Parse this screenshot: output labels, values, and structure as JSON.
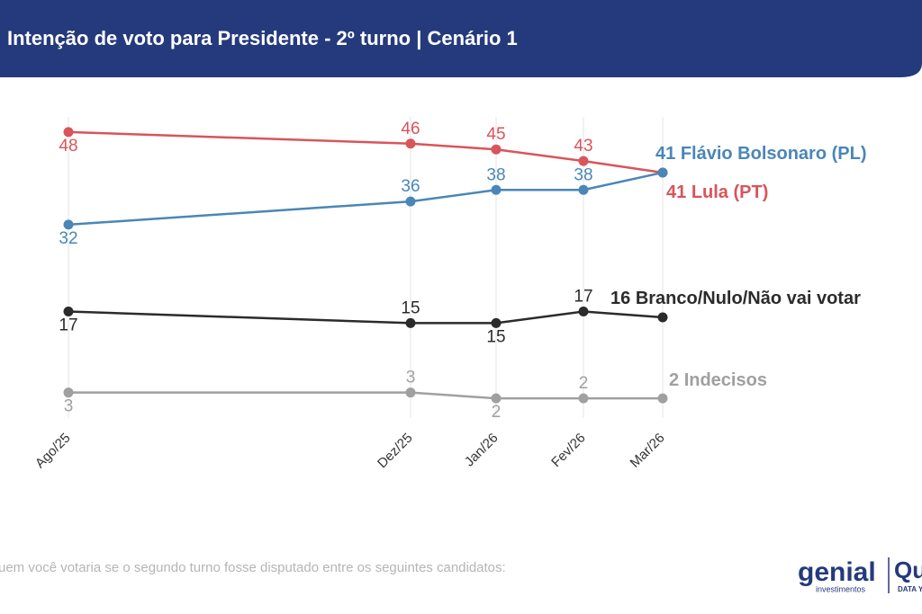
{
  "chart_data": {
    "type": "line",
    "title": "Intenção de voto para Presidente - 2º turno | Cenário 1",
    "categories": [
      "Ago/25",
      "Dez/25",
      "Jan/26",
      "Fev/26",
      "Mar/26"
    ],
    "series": [
      {
        "name": "Lula (PT)",
        "color": "#d9545b",
        "values": [
          48,
          46,
          45,
          43,
          41
        ]
      },
      {
        "name": "Flávio Bolsonaro (PL)",
        "color": "#4a86b8",
        "values": [
          32,
          36,
          38,
          38,
          41
        ]
      },
      {
        "name": "Branco/Nulo/Não vai votar",
        "color": "#2b2b2b",
        "values": [
          17,
          15,
          15,
          17,
          16
        ]
      },
      {
        "name": "Indecisos",
        "color": "#a0a0a0",
        "values": [
          3,
          3,
          2,
          2,
          2
        ]
      }
    ],
    "grid": true,
    "footnote": "uem você votaria se o segundo turno fosse disputado entre os seguintes candidatos:",
    "logos": {
      "brand": "genial",
      "brand_sub": "investimentos",
      "partner": "Qu",
      "partner_sub": "DATA Y"
    }
  }
}
